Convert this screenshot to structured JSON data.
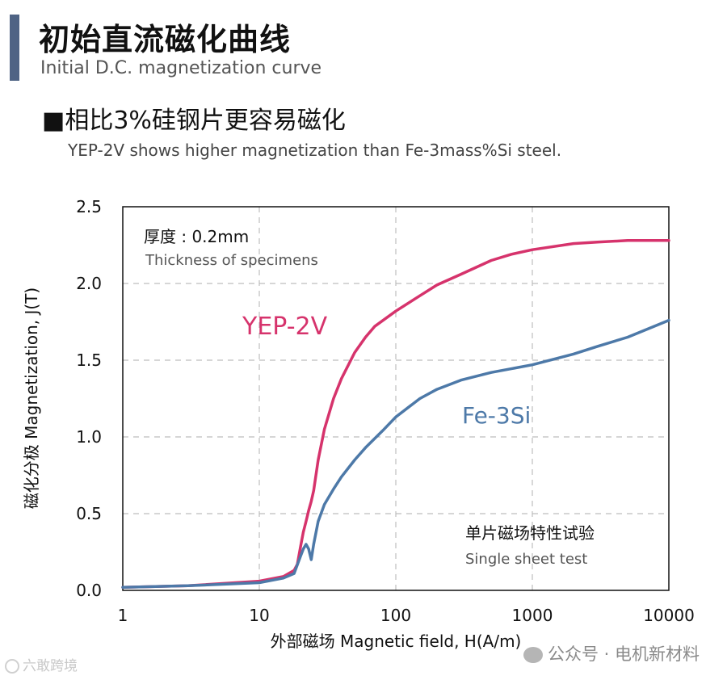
{
  "header": {
    "title_zh": "初始直流磁化曲线",
    "title_en": "Initial D.C. magnetization curve",
    "accent_color": "#4f6384"
  },
  "subheader": {
    "title_zh": "■相比3%硅钢片更容易磁化",
    "title_en": "YEP-2V shows higher magnetization than Fe-3mass%Si steel."
  },
  "watermark": {
    "left_text": "六敢跨境",
    "right_text": "公众号 · 电机新材料"
  },
  "chart_data": {
    "type": "line",
    "xscale": "log",
    "xlim": [
      1,
      10000
    ],
    "ylim": [
      0,
      2.5
    ],
    "xticks": [
      1,
      10,
      100,
      1000,
      10000
    ],
    "xtick_labels": [
      "1",
      "10",
      "100",
      "1000",
      "10000"
    ],
    "yticks": [
      0,
      0.5,
      1.0,
      1.5,
      2.0,
      2.5
    ],
    "ytick_labels": [
      "0.0",
      "0.5",
      "1.0",
      "1.5",
      "2.0",
      "2.5"
    ],
    "grid": true,
    "xlabel": "外部磁场 Magnetic field, H(A/m)",
    "ylabel": "磁化分极 Magnetization, J(T)",
    "annotations": {
      "thickness_zh": "厚度 : 0.2mm",
      "thickness_en": "Thickness of specimens",
      "test_zh": "单片磁场特性试验",
      "test_en": "Single sheet test"
    },
    "series": [
      {
        "name": "YEP-2V",
        "color": "#d6336c",
        "x": [
          1,
          3,
          10,
          15,
          18,
          19,
          20,
          21,
          22,
          23,
          24,
          25,
          27,
          30,
          35,
          40,
          50,
          60,
          70,
          100,
          150,
          200,
          300,
          500,
          700,
          1000,
          2000,
          3000,
          5000,
          10000
        ],
        "y": [
          0.02,
          0.03,
          0.06,
          0.09,
          0.13,
          0.17,
          0.28,
          0.38,
          0.45,
          0.52,
          0.58,
          0.65,
          0.85,
          1.05,
          1.25,
          1.38,
          1.55,
          1.65,
          1.72,
          1.82,
          1.92,
          1.99,
          2.06,
          2.15,
          2.19,
          2.22,
          2.26,
          2.27,
          2.28,
          2.28
        ]
      },
      {
        "name": "Fe-3Si",
        "color": "#4d79a8",
        "x": [
          1,
          3,
          10,
          15,
          18,
          20,
          21,
          22,
          23,
          24,
          25,
          27,
          30,
          35,
          40,
          50,
          60,
          80,
          100,
          150,
          200,
          300,
          500,
          1000,
          2000,
          3000,
          5000,
          10000
        ],
        "y": [
          0.02,
          0.03,
          0.05,
          0.08,
          0.11,
          0.22,
          0.27,
          0.3,
          0.27,
          0.2,
          0.3,
          0.45,
          0.56,
          0.66,
          0.74,
          0.85,
          0.93,
          1.04,
          1.13,
          1.25,
          1.31,
          1.37,
          1.42,
          1.47,
          1.54,
          1.59,
          1.65,
          1.76
        ]
      }
    ]
  }
}
